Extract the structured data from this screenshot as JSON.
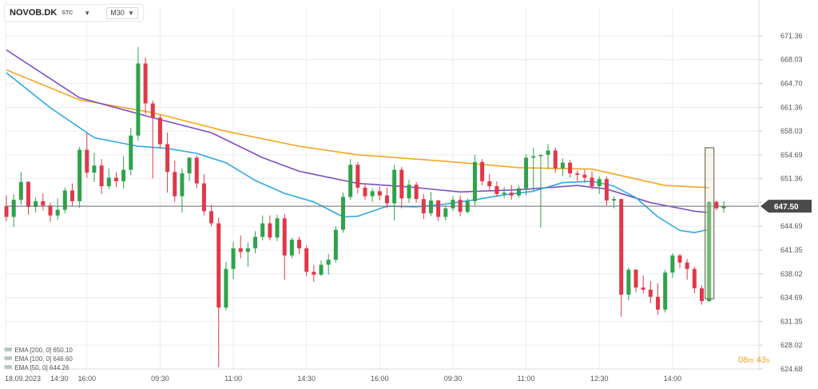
{
  "header": {
    "symbol": "NOVOB.DK",
    "symbol_suffix": "STC",
    "timeframe": "M30",
    "caret_icon": "chevron-down-icon"
  },
  "legend": [
    {
      "label": "EMA [200, 0] 650.10",
      "color": "#f5a623"
    },
    {
      "label": "EMA [100, 0] 646.60",
      "color": "#7e4fc2"
    },
    {
      "label": "EMA [50, 0] 644.26",
      "color": "#2ea9e5"
    }
  ],
  "countdown": {
    "minutes": "08",
    "minutes_unit": "m",
    "seconds": "43",
    "seconds_unit": "s"
  },
  "chart_data": {
    "type": "candlestick",
    "title": "",
    "ylim": [
      624.68,
      672.5
    ],
    "y_ticks": [
      "671.36",
      "668.03",
      "664.70",
      "661.36",
      "658.03",
      "654.69",
      "651.36",
      "648.02",
      "644.69",
      "641.35",
      "638.02",
      "634.69",
      "631.35",
      "628.02",
      "624.68"
    ],
    "x_ticks": [
      {
        "label": "18.09.2023",
        "index": 0
      },
      {
        "label": "14:30",
        "index": 1
      },
      {
        "label": "16:00",
        "index": 11
      },
      {
        "label": "09:30",
        "index": 21
      },
      {
        "label": "11:00",
        "index": 31
      },
      {
        "label": "14:30",
        "index": 41
      },
      {
        "label": "16:00",
        "index": 51
      },
      {
        "label": "09:30",
        "index": 61
      },
      {
        "label": "11:00",
        "index": 71
      },
      {
        "label": "12:30",
        "index": 81
      },
      {
        "label": "14:00",
        "index": 91
      }
    ],
    "current_price": "647.50",
    "colors": {
      "up": "#2fa24a",
      "down": "#e0384a"
    },
    "candles": [
      [
        647.5,
        649.0,
        645.4,
        646.0
      ],
      [
        646.0,
        649.2,
        644.6,
        648.4
      ],
      [
        648.4,
        652.3,
        647.7,
        650.9
      ],
      [
        650.9,
        651.0,
        646.3,
        647.4
      ],
      [
        647.4,
        648.7,
        646.6,
        648.2
      ],
      [
        648.2,
        649.3,
        646.9,
        647.6
      ],
      [
        647.6,
        648.0,
        645.3,
        646.2
      ],
      [
        646.2,
        648.6,
        645.6,
        647.0
      ],
      [
        647.0,
        650.1,
        646.5,
        649.7
      ],
      [
        649.7,
        650.7,
        647.5,
        648.2
      ],
      [
        648.2,
        655.8,
        647.3,
        655.4
      ],
      [
        655.4,
        657.8,
        651.5,
        652.2
      ],
      [
        652.2,
        655.0,
        650.9,
        653.2
      ],
      [
        653.2,
        654.1,
        649.2,
        650.3
      ],
      [
        650.3,
        652.8,
        649.9,
        651.5
      ],
      [
        651.5,
        652.3,
        650.2,
        651.0
      ],
      [
        651.0,
        654.5,
        650.0,
        652.6
      ],
      [
        652.6,
        658.5,
        651.8,
        657.4
      ],
      [
        657.4,
        669.8,
        656.7,
        667.5
      ],
      [
        667.5,
        668.3,
        660.4,
        661.9
      ],
      [
        661.9,
        662.3,
        651.4,
        659.9
      ],
      [
        659.9,
        660.3,
        655.6,
        656.2
      ],
      [
        656.2,
        657.8,
        649.4,
        652.3
      ],
      [
        652.3,
        653.9,
        648.1,
        648.9
      ],
      [
        648.9,
        652.8,
        646.6,
        652.1
      ],
      [
        652.1,
        654.4,
        651.0,
        654.3
      ],
      [
        654.3,
        654.6,
        650.0,
        650.7
      ],
      [
        650.7,
        652.0,
        646.2,
        646.8
      ],
      [
        646.8,
        647.7,
        644.7,
        645.1
      ],
      [
        645.1,
        645.9,
        624.9,
        633.3
      ],
      [
        633.3,
        639.7,
        632.9,
        638.7
      ],
      [
        638.7,
        642.5,
        637.3,
        641.6
      ],
      [
        641.6,
        643.4,
        640.2,
        641.1
      ],
      [
        641.1,
        642.4,
        639.0,
        641.6
      ],
      [
        641.6,
        644.0,
        640.9,
        643.2
      ],
      [
        643.2,
        646.2,
        642.7,
        645.1
      ],
      [
        645.1,
        646.2,
        642.7,
        643.1
      ],
      [
        643.1,
        646.3,
        642.6,
        645.8
      ],
      [
        645.8,
        646.4,
        637.2,
        640.6
      ],
      [
        640.6,
        643.1,
        640.2,
        642.8
      ],
      [
        642.8,
        643.2,
        640.8,
        641.6
      ],
      [
        641.6,
        642.0,
        637.7,
        638.3
      ],
      [
        638.3,
        639.3,
        636.9,
        637.9
      ],
      [
        637.9,
        639.9,
        637.7,
        639.3
      ],
      [
        639.3,
        640.8,
        637.9,
        640.0
      ],
      [
        640.0,
        644.7,
        639.6,
        644.2
      ],
      [
        644.2,
        649.4,
        643.8,
        648.8
      ],
      [
        648.8,
        654.1,
        648.4,
        653.3
      ],
      [
        653.3,
        653.7,
        649.3,
        650.1
      ],
      [
        650.1,
        650.5,
        648.4,
        648.9
      ],
      [
        648.9,
        650.0,
        648.1,
        649.6
      ],
      [
        649.6,
        650.2,
        648.3,
        649.0
      ],
      [
        649.0,
        650.1,
        647.2,
        647.9
      ],
      [
        647.9,
        653.3,
        645.5,
        652.6
      ],
      [
        652.6,
        653.0,
        647.2,
        648.6
      ],
      [
        648.6,
        651.2,
        648.0,
        650.5
      ],
      [
        650.5,
        650.9,
        648.0,
        648.5
      ],
      [
        648.5,
        649.2,
        645.7,
        646.5
      ],
      [
        646.5,
        649.5,
        646.1,
        648.3
      ],
      [
        648.3,
        648.4,
        645.4,
        646.0
      ],
      [
        646.0,
        647.6,
        645.5,
        647.2
      ],
      [
        647.2,
        648.9,
        646.8,
        648.4
      ],
      [
        648.4,
        649.0,
        646.1,
        646.7
      ],
      [
        646.7,
        648.6,
        646.5,
        648.2
      ],
      [
        648.2,
        654.7,
        647.6,
        653.7
      ],
      [
        653.7,
        654.1,
        650.4,
        651.0
      ],
      [
        651.0,
        652.0,
        649.7,
        650.3
      ],
      [
        650.3,
        651.0,
        648.8,
        649.2
      ],
      [
        649.2,
        650.2,
        648.6,
        649.4
      ],
      [
        649.4,
        650.5,
        648.4,
        649.0
      ],
      [
        649.0,
        650.4,
        648.7,
        650.0
      ],
      [
        650.0,
        654.8,
        649.0,
        654.3
      ],
      [
        654.3,
        655.7,
        649.7,
        654.5
      ],
      [
        654.5,
        654.7,
        644.5,
        654.7
      ],
      [
        654.7,
        656.2,
        652.7,
        655.3
      ],
      [
        655.3,
        655.7,
        652.2,
        652.8
      ],
      [
        652.8,
        654.2,
        651.7,
        653.6
      ],
      [
        653.6,
        654.0,
        651.5,
        652.1
      ],
      [
        652.1,
        652.5,
        651.0,
        651.9
      ],
      [
        651.9,
        652.6,
        650.8,
        651.5
      ],
      [
        651.5,
        652.4,
        649.8,
        650.3
      ],
      [
        650.3,
        651.7,
        649.2,
        651.3
      ],
      [
        651.3,
        651.7,
        647.6,
        648.3
      ],
      [
        648.3,
        648.9,
        647.2,
        648.5
      ],
      [
        648.5,
        648.6,
        632.0,
        635.1
      ],
      [
        635.1,
        638.9,
        634.3,
        638.6
      ],
      [
        638.6,
        638.7,
        635.4,
        636.1
      ],
      [
        636.1,
        637.8,
        635.3,
        635.8
      ],
      [
        635.8,
        637.0,
        633.9,
        634.8
      ],
      [
        634.8,
        636.7,
        632.3,
        633.0
      ],
      [
        633.0,
        638.6,
        632.6,
        638.2
      ],
      [
        638.2,
        640.9,
        637.5,
        640.6
      ],
      [
        640.6,
        640.8,
        638.8,
        639.6
      ],
      [
        639.6,
        640.1,
        637.2,
        638.7
      ],
      [
        638.7,
        639.0,
        635.3,
        636.0
      ],
      [
        636.0,
        636.4,
        633.7,
        634.2
      ],
      [
        634.2,
        648.2,
        634.1,
        648.1
      ],
      [
        648.1,
        648.3,
        646.9,
        647.2
      ],
      [
        647.2,
        648.2,
        646.6,
        647.5
      ]
    ],
    "series": [
      {
        "name": "EMA [200, 0]",
        "color": "#f5a623",
        "points": [
          [
            0,
            666.6
          ],
          [
            10,
            662.4
          ],
          [
            20,
            660.6
          ],
          [
            30,
            658.0
          ],
          [
            40,
            655.9
          ],
          [
            48,
            654.7
          ],
          [
            60,
            653.8
          ],
          [
            70,
            652.9
          ],
          [
            80,
            652.7
          ],
          [
            90,
            650.4
          ],
          [
            96,
            650.1
          ]
        ]
      },
      {
        "name": "EMA [100, 0]",
        "color": "#7e4fc2",
        "points": [
          [
            0,
            669.4
          ],
          [
            10,
            662.7
          ],
          [
            20,
            659.9
          ],
          [
            28,
            657.8
          ],
          [
            35,
            654.3
          ],
          [
            40,
            652.4
          ],
          [
            48,
            650.7
          ],
          [
            55,
            650.2
          ],
          [
            62,
            649.5
          ],
          [
            70,
            649.8
          ],
          [
            78,
            650.4
          ],
          [
            82,
            649.9
          ],
          [
            88,
            648.0
          ],
          [
            94,
            646.8
          ],
          [
            96,
            646.6
          ]
        ]
      },
      {
        "name": "EMA [50, 0]",
        "color": "#2ea9e5",
        "points": [
          [
            0,
            666.2
          ],
          [
            6,
            661.3
          ],
          [
            12,
            657.1
          ],
          [
            18,
            655.9
          ],
          [
            22,
            655.6
          ],
          [
            26,
            654.9
          ],
          [
            30,
            653.6
          ],
          [
            34,
            651.1
          ],
          [
            38,
            649.3
          ],
          [
            42,
            648.1
          ],
          [
            46,
            646.0
          ],
          [
            48,
            646.1
          ],
          [
            52,
            647.5
          ],
          [
            56,
            647.4
          ],
          [
            60,
            647.8
          ],
          [
            64,
            648.4
          ],
          [
            68,
            649.1
          ],
          [
            72,
            649.6
          ],
          [
            76,
            650.8
          ],
          [
            80,
            651.0
          ],
          [
            83,
            650.3
          ],
          [
            86,
            648.7
          ],
          [
            89,
            646.0
          ],
          [
            92,
            644.1
          ],
          [
            94,
            643.8
          ],
          [
            96,
            644.26
          ]
        ]
      }
    ]
  }
}
